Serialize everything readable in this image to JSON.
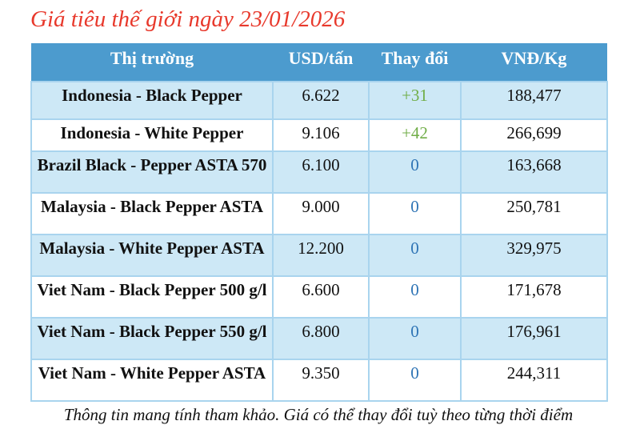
{
  "title": "Giá tiêu thế giới ngày 23/01/2026",
  "table": {
    "headers": [
      "Thị trường",
      "USD/tấn",
      "Thay đổi",
      "VNĐ/Kg"
    ],
    "rows": [
      {
        "market": "Indonesia - Black Pepper",
        "usd": "6.622",
        "change": "+31",
        "change_type": "up",
        "vnd": "188,477"
      },
      {
        "market": "Indonesia - White Pepper",
        "usd": "9.106",
        "change": "+42",
        "change_type": "up",
        "vnd": "266,699"
      },
      {
        "market": "Brazil Black - Pepper ASTA 570",
        "usd": "6.100",
        "change": "0",
        "change_type": "zero",
        "vnd": "163,668"
      },
      {
        "market": "Malaysia - Black Pepper ASTA",
        "usd": "9.000",
        "change": "0",
        "change_type": "zero",
        "vnd": "250,781"
      },
      {
        "market": "Malaysia - White Pepper ASTA",
        "usd": "12.200",
        "change": "0",
        "change_type": "zero",
        "vnd": "329,975"
      },
      {
        "market": "Viet Nam - Black Pepper 500 g/l",
        "usd": "6.600",
        "change": "0",
        "change_type": "zero",
        "vnd": "171,678"
      },
      {
        "market": "Viet Nam - Black Pepper 550 g/l",
        "usd": "6.800",
        "change": "0",
        "change_type": "zero",
        "vnd": "176,961"
      },
      {
        "market": "Viet Nam - White Pepper ASTA",
        "usd": "9.350",
        "change": "0",
        "change_type": "zero",
        "vnd": "244,311"
      }
    ]
  },
  "footer": "Thông tin mang tính tham khảo. Giá có thể thay đổi tuỳ theo từng thời điểm",
  "colors": {
    "header_bg": "#4C9BCE",
    "row_alt_bg": "#CDE8F6",
    "border": "#A9D4EE",
    "title": "#E8392C",
    "change_up": "#70AD47",
    "change_zero": "#2E74B5"
  }
}
